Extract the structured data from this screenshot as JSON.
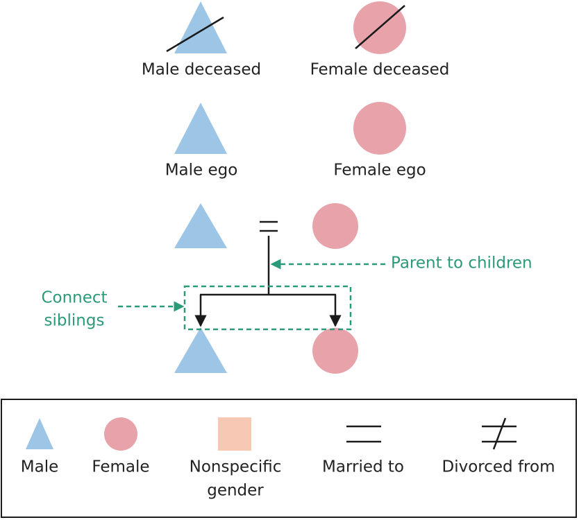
{
  "symbols": {
    "male_deceased": "Male deceased",
    "female_deceased": "Female deceased",
    "male_ego": "Male ego",
    "female_ego": "Female ego"
  },
  "annotations": {
    "parent_to_children": "Parent to children",
    "connect_siblings": [
      "Connect",
      "siblings"
    ]
  },
  "legend": {
    "male": "Male",
    "female": "Female",
    "nonspecific": [
      "Nonspecific",
      "gender"
    ],
    "married": "Married to",
    "divorced": "Divorced from"
  }
}
